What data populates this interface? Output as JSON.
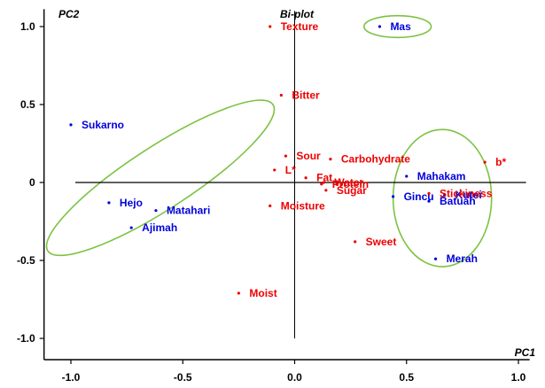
{
  "chart_data": {
    "type": "scatter",
    "title": "Bi-plot",
    "xlabel": "PC1",
    "ylabel": "PC2",
    "xlim": [
      -1.12,
      1.05
    ],
    "ylim": [
      -1.1,
      1.1
    ],
    "x_ticks": [
      -1.0,
      -0.5,
      0.0,
      0.5,
      1.0
    ],
    "x_tick_labels": [
      "-1.0",
      "-0.5",
      "0.0",
      "0.5",
      "1.0"
    ],
    "y_ticks": [
      -1.0,
      -0.5,
      0.0,
      0.5,
      1.0
    ],
    "y_tick_labels": [
      "-1.0",
      "-0.5",
      "0",
      "0.5",
      "1.0"
    ],
    "grid": false,
    "legend": "none",
    "series": [
      {
        "color": "#0000dd",
        "points": [
          {
            "label": "Sukarno",
            "x": -1.0,
            "y": 0.37
          },
          {
            "label": "Hejo",
            "x": -0.83,
            "y": -0.13
          },
          {
            "label": "Matahari",
            "x": -0.62,
            "y": -0.18
          },
          {
            "label": "Ajimah",
            "x": -0.73,
            "y": -0.29
          },
          {
            "label": "Mas",
            "x": 0.38,
            "y": 1.0
          },
          {
            "label": "Mahakam",
            "x": 0.5,
            "y": 0.04
          },
          {
            "label": "Kutei",
            "x": 0.67,
            "y": -0.08
          },
          {
            "label": "Gincu",
            "x": 0.44,
            "y": -0.09
          },
          {
            "label": "Batuah",
            "x": 0.6,
            "y": -0.12
          },
          {
            "label": "Merah",
            "x": 0.63,
            "y": -0.49
          }
        ]
      },
      {
        "color": "#ee0000",
        "points": [
          {
            "label": "Texture",
            "x": -0.11,
            "y": 1.0
          },
          {
            "label": "Bitter",
            "x": -0.06,
            "y": 0.56
          },
          {
            "label": "Sour",
            "x": -0.04,
            "y": 0.17
          },
          {
            "label": "Carbohydrate",
            "x": 0.16,
            "y": 0.15
          },
          {
            "label": "L*",
            "x": -0.09,
            "y": 0.08
          },
          {
            "label": "Fat",
            "x": 0.05,
            "y": 0.03
          },
          {
            "label": "Protein",
            "x": 0.12,
            "y": -0.01
          },
          {
            "label": "Water",
            "x": 0.13,
            "y": 0.0
          },
          {
            "label": "Sugar",
            "x": 0.14,
            "y": -0.05
          },
          {
            "label": "Moisture",
            "x": -0.11,
            "y": -0.15
          },
          {
            "label": "Stickiness",
            "x": 0.6,
            "y": -0.07
          },
          {
            "label": "b*",
            "x": 0.85,
            "y": 0.13
          },
          {
            "label": "Sweet",
            "x": 0.27,
            "y": -0.38
          },
          {
            "label": "Moist",
            "x": -0.25,
            "y": -0.71
          }
        ]
      }
    ],
    "annotations": [
      {
        "shape": "ellipse",
        "color": "#7dc242",
        "cx": -0.6,
        "cy": 0.03,
        "rx": 0.6,
        "ry": 0.2,
        "angle_deg": -33
      },
      {
        "shape": "ellipse",
        "color": "#7dc242",
        "cx": 0.46,
        "cy": 1.0,
        "rx": 0.15,
        "ry": 0.07,
        "angle_deg": 0
      },
      {
        "shape": "ellipse",
        "color": "#7dc242",
        "cx": 0.66,
        "cy": -0.1,
        "rx": 0.22,
        "ry": 0.44,
        "angle_deg": 0
      }
    ]
  }
}
